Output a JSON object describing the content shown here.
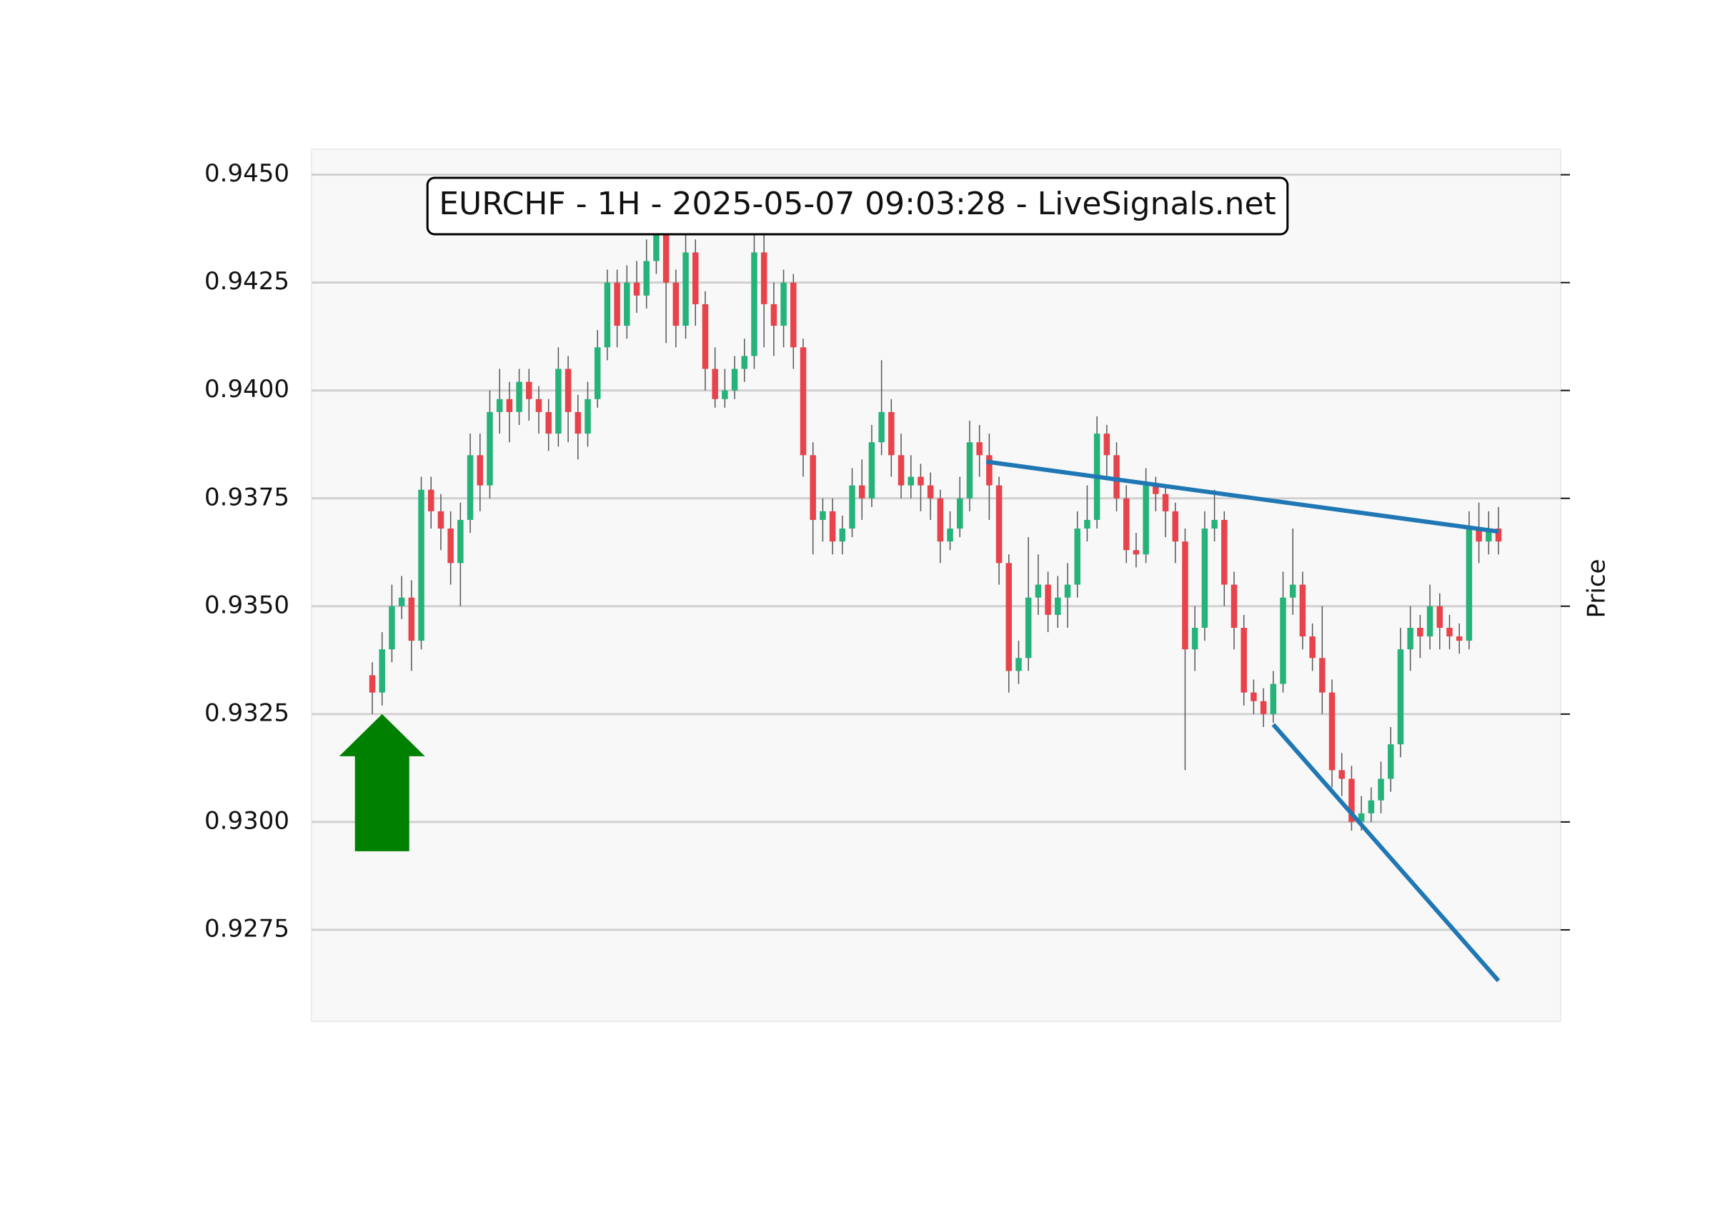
{
  "chart_data": {
    "type": "candlestick",
    "title": "EURCHF - 1H - 2025-05-07 09:03:28 - LiveSignals.net",
    "ylabel": "Price",
    "ylim": [
      0.92538,
      0.94559
    ],
    "yticks": [
      {
        "value": 0.945,
        "label": "0.9450"
      },
      0.9425,
      {
        "value": 0.94,
        "label": "0.9400"
      },
      0.9375,
      {
        "value": 0.935,
        "label": "0.9350"
      },
      0.9325,
      {
        "value": 0.93,
        "label": "0.9300"
      },
      0.9275
    ],
    "grid": true,
    "up_color": "#26b37a",
    "down_color": "#e8424a",
    "wick_color": "#555555",
    "open": [
      0.9334,
      0.933,
      0.934,
      0.935,
      0.9352,
      0.9342,
      0.9377,
      0.9372,
      0.9368,
      0.936,
      0.937,
      0.9385,
      0.9378,
      0.9395,
      0.9398,
      0.9395,
      0.9402,
      0.9398,
      0.9395,
      0.939,
      0.9405,
      0.9395,
      0.939,
      0.9398,
      0.941,
      0.9425,
      0.9415,
      0.9425,
      0.9422,
      0.943,
      0.944,
      0.9425,
      0.9415,
      0.9432,
      0.942,
      0.9405,
      0.9398,
      0.94,
      0.9405,
      0.9408,
      0.9432,
      0.942,
      0.9415,
      0.9425,
      0.941,
      0.9385,
      0.937,
      0.9372,
      0.9365,
      0.9368,
      0.9378,
      0.9375,
      0.9388,
      0.9395,
      0.9385,
      0.9378,
      0.938,
      0.9378,
      0.9375,
      0.9365,
      0.9368,
      0.9375,
      0.9388,
      0.9385,
      0.9378,
      0.936,
      0.9335,
      0.9338,
      0.9352,
      0.9355,
      0.9348,
      0.9352,
      0.9355,
      0.9368,
      0.937,
      0.939,
      0.9385,
      0.9375,
      0.9363,
      0.9362,
      0.9378,
      0.9376,
      0.9372,
      0.9365,
      0.934,
      0.9345,
      0.9368,
      0.937,
      0.9355,
      0.9345,
      0.933,
      0.9328,
      0.9325,
      0.9332,
      0.9352,
      0.9355,
      0.9343,
      0.9338,
      0.933,
      0.9312,
      0.931,
      0.93,
      0.9302,
      0.9305,
      0.931,
      0.9318,
      0.934,
      0.9345,
      0.9343,
      0.935,
      0.9345,
      0.9343,
      0.9342,
      0.9368,
      0.9365,
      0.9368
    ],
    "high": [
      0.9337,
      0.9344,
      0.9355,
      0.9357,
      0.9356,
      0.938,
      0.938,
      0.9376,
      0.9372,
      0.9374,
      0.939,
      0.939,
      0.94,
      0.9405,
      0.9402,
      0.9405,
      0.9405,
      0.9401,
      0.9398,
      0.941,
      0.9408,
      0.9399,
      0.9402,
      0.9414,
      0.9428,
      0.9428,
      0.9429,
      0.943,
      0.9435,
      0.9445,
      0.9444,
      0.9428,
      0.944,
      0.9435,
      0.9423,
      0.941,
      0.9405,
      0.9408,
      0.9412,
      0.944,
      0.9437,
      0.9425,
      0.9428,
      0.9427,
      0.9412,
      0.9388,
      0.9375,
      0.9375,
      0.9371,
      0.9382,
      0.9384,
      0.9392,
      0.9407,
      0.9398,
      0.939,
      0.9385,
      0.9383,
      0.9381,
      0.9377,
      0.9372,
      0.938,
      0.9393,
      0.9392,
      0.939,
      0.938,
      0.9362,
      0.9342,
      0.9366,
      0.9362,
      0.9358,
      0.9357,
      0.936,
      0.9372,
      0.9378,
      0.9394,
      0.9392,
      0.9388,
      0.9378,
      0.9367,
      0.9382,
      0.938,
      0.9378,
      0.9374,
      0.9368,
      0.935,
      0.9372,
      0.9377,
      0.9372,
      0.9358,
      0.9348,
      0.9333,
      0.9331,
      0.9335,
      0.9358,
      0.9368,
      0.9358,
      0.9346,
      0.935,
      0.9333,
      0.9316,
      0.9313,
      0.9306,
      0.9308,
      0.9314,
      0.9322,
      0.9345,
      0.935,
      0.9348,
      0.9355,
      0.9353,
      0.9348,
      0.9346,
      0.9372,
      0.9374,
      0.9372,
      0.9373
    ],
    "low": [
      0.9325,
      0.9327,
      0.9337,
      0.9347,
      0.9335,
      0.934,
      0.9368,
      0.9363,
      0.9355,
      0.935,
      0.9367,
      0.9372,
      0.9375,
      0.939,
      0.9388,
      0.9392,
      0.9393,
      0.939,
      0.9386,
      0.9387,
      0.9388,
      0.9384,
      0.9387,
      0.9396,
      0.9407,
      0.941,
      0.9412,
      0.9418,
      0.9419,
      0.9427,
      0.9411,
      0.941,
      0.9412,
      0.9415,
      0.94,
      0.9396,
      0.9396,
      0.9398,
      0.9402,
      0.9405,
      0.941,
      0.9408,
      0.941,
      0.9405,
      0.938,
      0.9362,
      0.9365,
      0.9362,
      0.9362,
      0.9366,
      0.937,
      0.9373,
      0.9385,
      0.938,
      0.9375,
      0.9375,
      0.9372,
      0.937,
      0.936,
      0.9363,
      0.9366,
      0.9372,
      0.938,
      0.937,
      0.9355,
      0.933,
      0.9332,
      0.9335,
      0.9348,
      0.9344,
      0.9345,
      0.9345,
      0.9352,
      0.9365,
      0.9368,
      0.938,
      0.9372,
      0.936,
      0.9359,
      0.936,
      0.9372,
      0.9366,
      0.936,
      0.9312,
      0.9335,
      0.9342,
      0.9365,
      0.935,
      0.934,
      0.9327,
      0.9325,
      0.9322,
      0.9323,
      0.933,
      0.9348,
      0.934,
      0.9335,
      0.9325,
      0.9308,
      0.9306,
      0.9298,
      0.9298,
      0.93,
      0.9302,
      0.9307,
      0.9315,
      0.9335,
      0.9338,
      0.934,
      0.934,
      0.934,
      0.9339,
      0.934,
      0.936,
      0.9362,
      0.9362
    ],
    "close": [
      0.933,
      0.934,
      0.935,
      0.9352,
      0.9342,
      0.9377,
      0.9372,
      0.9368,
      0.936,
      0.937,
      0.9385,
      0.9378,
      0.9395,
      0.9398,
      0.9395,
      0.9402,
      0.9398,
      0.9395,
      0.939,
      0.9405,
      0.9395,
      0.939,
      0.9398,
      0.941,
      0.9425,
      0.9415,
      0.9425,
      0.9422,
      0.943,
      0.944,
      0.9425,
      0.9415,
      0.9432,
      0.942,
      0.9405,
      0.9398,
      0.94,
      0.9405,
      0.9408,
      0.9432,
      0.942,
      0.9415,
      0.9425,
      0.941,
      0.9385,
      0.937,
      0.9372,
      0.9365,
      0.9368,
      0.9378,
      0.9375,
      0.9388,
      0.9395,
      0.9385,
      0.9378,
      0.938,
      0.9378,
      0.9375,
      0.9365,
      0.9368,
      0.9375,
      0.9388,
      0.9385,
      0.9378,
      0.936,
      0.9335,
      0.9338,
      0.9352,
      0.9355,
      0.9348,
      0.9352,
      0.9355,
      0.9368,
      0.937,
      0.939,
      0.9385,
      0.9375,
      0.9363,
      0.9362,
      0.9378,
      0.9376,
      0.9372,
      0.9365,
      0.934,
      0.9345,
      0.9368,
      0.937,
      0.9355,
      0.9345,
      0.933,
      0.9328,
      0.9325,
      0.9332,
      0.9352,
      0.9355,
      0.9343,
      0.9338,
      0.933,
      0.9312,
      0.931,
      0.93,
      0.9302,
      0.9305,
      0.931,
      0.9318,
      0.934,
      0.9345,
      0.9343,
      0.935,
      0.9345,
      0.9343,
      0.9342,
      0.9368,
      0.9365,
      0.9368,
      0.9365
    ],
    "trendlines": [
      {
        "color": "#1f77b4",
        "x": [
          62.7,
          115
        ],
        "y": [
          0.93835,
          0.93673
        ]
      },
      {
        "color": "#1f77b4",
        "x": [
          92,
          115
        ],
        "y": [
          0.93226,
          0.92632
        ]
      }
    ],
    "signal": {
      "color": "#008000",
      "index": 1,
      "price": 0.9325
    }
  }
}
